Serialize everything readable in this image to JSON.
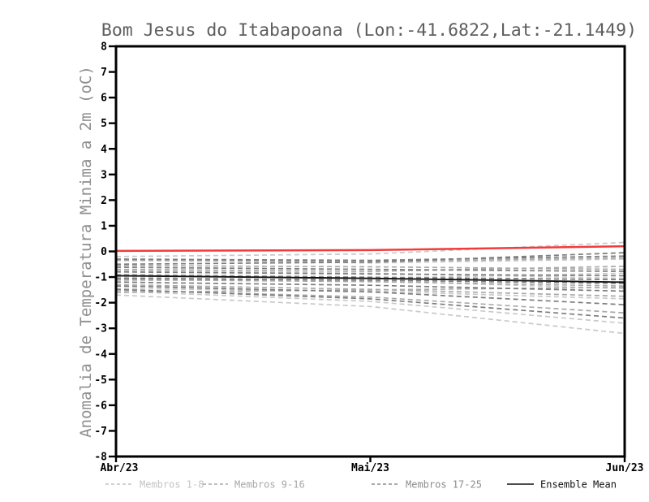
{
  "chart_data": {
    "type": "line",
    "title": "Bom Jesus do Itabapoana (Lon:-41.6822,Lat:-21.1449)",
    "ylabel": "Anomalia de Temperatura Minima a 2m (oC)",
    "xlabel": "",
    "x_categories": [
      "Abr/23",
      "Mai/23",
      "Jun/23"
    ],
    "ylim": [
      -8,
      8
    ],
    "ytick_interval": 1,
    "grid": false,
    "legend_position": "bottom",
    "title_color": "#5e5e5e",
    "ylabel_color": "#8e8e8e",
    "axis_color": "#000000",
    "series_groups": [
      {
        "name": "Membros 1-8",
        "color": "#c9c9c9",
        "style": "dashed",
        "members": [
          [
            -0.2,
            -0.1,
            0.35
          ],
          [
            -0.3,
            -0.45,
            -0.3
          ],
          [
            -0.75,
            -0.85,
            -1.05
          ],
          [
            -1.0,
            -1.15,
            -1.45
          ],
          [
            -1.45,
            -1.55,
            -1.85
          ],
          [
            -1.55,
            -1.95,
            -2.8
          ],
          [
            -1.7,
            -2.15,
            -3.2
          ],
          [
            -1.15,
            -1.05,
            -0.85
          ]
        ]
      },
      {
        "name": "Membros 9-16",
        "color": "#a9a9a9",
        "style": "dashed",
        "members": [
          [
            -0.35,
            -0.4,
            -0.25
          ],
          [
            -0.55,
            -0.6,
            -0.7
          ],
          [
            -0.7,
            -0.78,
            -0.58
          ],
          [
            -0.9,
            -1.0,
            -1.1
          ],
          [
            -1.1,
            -1.18,
            -1.35
          ],
          [
            -1.3,
            -1.48,
            -1.75
          ],
          [
            -1.5,
            -1.78,
            -2.4
          ],
          [
            -1.6,
            -1.5,
            -1.4
          ]
        ]
      },
      {
        "name": "Membros 17-25",
        "color": "#7d7d7d",
        "style": "dashed",
        "members": [
          [
            -0.3,
            -0.35,
            -0.18
          ],
          [
            -0.5,
            -0.42,
            -0.05
          ],
          [
            -0.62,
            -0.7,
            -0.78
          ],
          [
            -0.8,
            -0.88,
            -0.95
          ],
          [
            -0.95,
            -1.02,
            -1.1
          ],
          [
            -1.05,
            -1.12,
            -1.25
          ],
          [
            -1.2,
            -1.32,
            -1.55
          ],
          [
            -1.35,
            -1.58,
            -2.08
          ],
          [
            -1.48,
            -1.85,
            -2.6
          ]
        ]
      }
    ],
    "ensemble_mean": {
      "name": "Ensemble Mean",
      "color": "#111111",
      "style": "solid",
      "values": [
        -0.95,
        -1.05,
        -1.2
      ]
    },
    "reference_line": {
      "name": "zero-anomaly-reference",
      "color": "#f23b3b",
      "style": "solid",
      "values": [
        0.02,
        0.05,
        0.2
      ]
    }
  },
  "legend": {
    "items": [
      {
        "label": "Membros 1-8",
        "color": "#c4c4c4",
        "line_style": "dashed"
      },
      {
        "label": "Membros 9-16",
        "color": "#a8a8a8",
        "line_style": "dashed"
      },
      {
        "label": "Membros 17-25",
        "color": "#8c8c8c",
        "line_style": "dashed"
      },
      {
        "label": "Ensemble Mean",
        "color": "#111111",
        "line_style": "solid"
      }
    ]
  }
}
